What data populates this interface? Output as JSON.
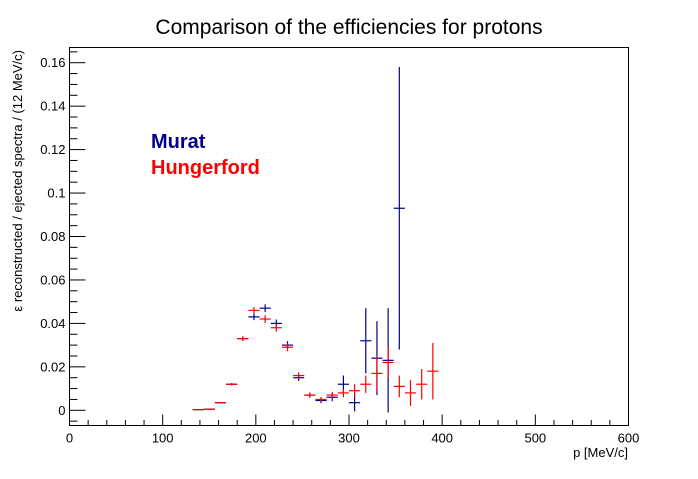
{
  "chart_data": {
    "type": "scatter",
    "title": "Comparison of the efficiencies for protons",
    "xlabel": "p [MeV/c]",
    "ylabel": "ε reconstructed / ejected spectra / (12 MeV/c)",
    "xlim": [
      0,
      600
    ],
    "ylim": [
      -0.007,
      0.167
    ],
    "x_ticks": [
      0,
      100,
      200,
      300,
      400,
      500,
      600
    ],
    "x_tick_labels": [
      "0",
      "100",
      "200",
      "300",
      "400",
      "500",
      "600"
    ],
    "y_ticks": [
      0,
      0.02,
      0.04,
      0.06,
      0.08,
      0.1,
      0.12,
      0.14,
      0.16
    ],
    "y_tick_labels": [
      "0",
      "0.02",
      "0.04",
      "0.06",
      "0.08",
      "0.1",
      "0.12",
      "0.14",
      "0.16"
    ],
    "grid": false,
    "legend_position": "upper-left",
    "bin_half_width": 6,
    "series": [
      {
        "name": "Murat",
        "color": "#00008f",
        "points": [
          {
            "x": 138,
            "y": 0.0003,
            "err": 0
          },
          {
            "x": 150,
            "y": 0.0005,
            "err": 0
          },
          {
            "x": 162,
            "y": 0.0035,
            "err": 0.0003
          },
          {
            "x": 174,
            "y": 0.012,
            "err": 0.0005
          },
          {
            "x": 186,
            "y": 0.033,
            "err": 0.001
          },
          {
            "x": 198,
            "y": 0.043,
            "err": 0.0015
          },
          {
            "x": 210,
            "y": 0.047,
            "err": 0.0018
          },
          {
            "x": 222,
            "y": 0.04,
            "err": 0.0018
          },
          {
            "x": 234,
            "y": 0.03,
            "err": 0.0018
          },
          {
            "x": 246,
            "y": 0.015,
            "err": 0.0015
          },
          {
            "x": 258,
            "y": 0.007,
            "err": 0.0012
          },
          {
            "x": 270,
            "y": 0.0045,
            "err": 0.0012
          },
          {
            "x": 282,
            "y": 0.006,
            "err": 0.0018
          },
          {
            "x": 294,
            "y": 0.012,
            "err": 0.004
          },
          {
            "x": 306,
            "y": 0.0035,
            "err": 0.004
          },
          {
            "x": 318,
            "y": 0.032,
            "err": 0.015
          },
          {
            "x": 330,
            "y": 0.024,
            "err": 0.017
          },
          {
            "x": 342,
            "y": 0.023,
            "err": 0.024
          },
          {
            "x": 354,
            "y": 0.093,
            "err": 0.065
          }
        ]
      },
      {
        "name": "Hungerford",
        "color": "#ff0000",
        "points": [
          {
            "x": 138,
            "y": 0.0003,
            "err": 0
          },
          {
            "x": 150,
            "y": 0.0005,
            "err": 0
          },
          {
            "x": 162,
            "y": 0.0035,
            "err": 0.0003
          },
          {
            "x": 174,
            "y": 0.012,
            "err": 0.0005
          },
          {
            "x": 186,
            "y": 0.033,
            "err": 0.001
          },
          {
            "x": 198,
            "y": 0.046,
            "err": 0.0015
          },
          {
            "x": 210,
            "y": 0.042,
            "err": 0.0018
          },
          {
            "x": 222,
            "y": 0.038,
            "err": 0.0018
          },
          {
            "x": 234,
            "y": 0.029,
            "err": 0.0018
          },
          {
            "x": 246,
            "y": 0.016,
            "err": 0.0015
          },
          {
            "x": 258,
            "y": 0.007,
            "err": 0.0012
          },
          {
            "x": 270,
            "y": 0.005,
            "err": 0.0012
          },
          {
            "x": 282,
            "y": 0.007,
            "err": 0.0015
          },
          {
            "x": 294,
            "y": 0.008,
            "err": 0.002
          },
          {
            "x": 306,
            "y": 0.009,
            "err": 0.003
          },
          {
            "x": 318,
            "y": 0.012,
            "err": 0.004
          },
          {
            "x": 330,
            "y": 0.017,
            "err": 0.008
          },
          {
            "x": 342,
            "y": 0.022,
            "err": 0.007
          },
          {
            "x": 354,
            "y": 0.011,
            "err": 0.005
          },
          {
            "x": 366,
            "y": 0.008,
            "err": 0.006
          },
          {
            "x": 378,
            "y": 0.012,
            "err": 0.007
          },
          {
            "x": 390,
            "y": 0.018,
            "err": 0.013
          }
        ]
      }
    ]
  }
}
